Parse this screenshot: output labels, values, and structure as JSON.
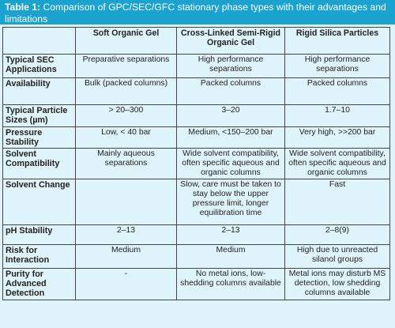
{
  "caption": {
    "label": "Table 1:",
    "text": " Comparison of GPC/SEC/GFC stationary phase types with their advantages and limitations"
  },
  "columns": [
    "",
    "Soft Organic Gel",
    "Cross-Linked Semi-Rigid Organic Gel",
    "Rigid Silica Particles"
  ],
  "rows": [
    {
      "label": "Typical SEC Applications",
      "cells": [
        "Preparative separations",
        "High performance separations",
        "High performance separations"
      ]
    },
    {
      "label": "Availability",
      "cells": [
        "Bulk (packed columns)",
        "Packed columns",
        "Packed columns"
      ]
    },
    {
      "label": "Typical Particle Sizes (µm)",
      "cells": [
        "> 20–300",
        "3–20",
        "1.7–10"
      ]
    },
    {
      "label": "Pressure Stability",
      "cells": [
        "Low, < 40 bar",
        "Medium, <150–200 bar",
        "Very high, >>200 bar"
      ]
    },
    {
      "label": "Solvent Compatibility",
      "cells": [
        "Mainly aqueous separations",
        "Wide solvent compatibility, often specific aqueous and organic columns",
        "Wide solvent compatibility, often specific aqueous and organic columns"
      ]
    },
    {
      "label": "Solvent Change",
      "cells": [
        "",
        "Slow, care must be taken to stay below the upper pressure limit, longer equilibration time",
        "Fast"
      ]
    },
    {
      "label": "pH Stability",
      "cells": [
        "2–13",
        "2–13",
        "2–8(9)"
      ]
    },
    {
      "label": "Risk for Interaction",
      "cells": [
        "Medium",
        "Medium",
        "High due to unreacted silanol groups"
      ]
    },
    {
      "label": "Purity for Advanced Detection",
      "cells": [
        "-",
        "No metal ions, low-shedding columns available",
        "Metal ions may disturb MS detection, low shedding columns available"
      ]
    }
  ],
  "colors": {
    "caption_bg": "#1aa3cf",
    "table_bg": "#dff3fb",
    "border": "#444444"
  }
}
